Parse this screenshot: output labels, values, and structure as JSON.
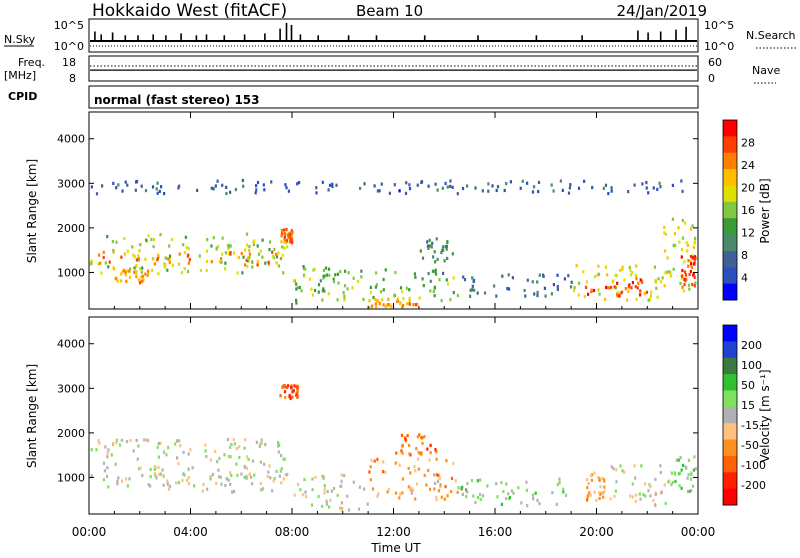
{
  "header": {
    "title": "Hokkaido West (fitACF)",
    "beam": "Beam 10",
    "date": "24/Jan/2019"
  },
  "noise_panel": {
    "left_label": "N.Sky",
    "right_label": "N.Search",
    "left_ticks": [
      "10^5",
      "10^0"
    ],
    "right_ticks": [
      "10^5",
      "10^0"
    ],
    "n_sky_bars": [
      {
        "x": 0.2,
        "v": 0.5
      },
      {
        "x": 0.45,
        "v": 0.35
      },
      {
        "x": 0.9,
        "v": 0.45
      },
      {
        "x": 1.4,
        "v": 0.3
      },
      {
        "x": 1.9,
        "v": 0.3
      },
      {
        "x": 2.5,
        "v": 0.35
      },
      {
        "x": 3.0,
        "v": 0.3
      },
      {
        "x": 3.6,
        "v": 0.4
      },
      {
        "x": 4.2,
        "v": 0.3
      },
      {
        "x": 4.6,
        "v": 0.35
      },
      {
        "x": 5.3,
        "v": 0.3
      },
      {
        "x": 6.1,
        "v": 0.35
      },
      {
        "x": 6.9,
        "v": 0.4
      },
      {
        "x": 7.5,
        "v": 0.65
      },
      {
        "x": 7.75,
        "v": 0.95
      },
      {
        "x": 7.95,
        "v": 0.85
      },
      {
        "x": 8.3,
        "v": 0.35
      },
      {
        "x": 9.0,
        "v": 0.3
      },
      {
        "x": 10.2,
        "v": 0.3
      },
      {
        "x": 11.3,
        "v": 0.3
      },
      {
        "x": 13.2,
        "v": 0.3
      },
      {
        "x": 15.3,
        "v": 0.3
      },
      {
        "x": 17.6,
        "v": 0.3
      },
      {
        "x": 19.4,
        "v": 0.3
      },
      {
        "x": 21.6,
        "v": 0.55
      },
      {
        "x": 22.0,
        "v": 0.45
      },
      {
        "x": 22.5,
        "v": 0.5
      },
      {
        "x": 23.1,
        "v": 0.6
      },
      {
        "x": 23.5,
        "v": 0.75
      }
    ]
  },
  "freq_panel": {
    "label_top": "Freq.",
    "label_unit": "[MHz]",
    "left_ticks": [
      "18",
      "8"
    ],
    "right_ticks": [
      "60",
      "0"
    ],
    "right_label": "Nave",
    "freq_mhz": 12.3,
    "nave": 22
  },
  "cpid": {
    "label": "CPID",
    "text": "normal (fast stereo) 153"
  },
  "x_axis": {
    "ticks": [
      "00:00",
      "04:00",
      "08:00",
      "12:00",
      "16:00",
      "20:00",
      "00:00"
    ],
    "tick_hours": [
      0,
      4,
      8,
      12,
      16,
      20,
      24
    ],
    "label": "Time UT"
  },
  "power_panel": {
    "ylabel": "Slant Range [km]",
    "yticks": [
      1000,
      2000,
      3000,
      4000
    ],
    "ylim": [
      180,
      4600
    ],
    "colorbar_label": "Power [dB]",
    "colorbar_ticks": [
      "28",
      "24",
      "20",
      "16",
      "12",
      "8",
      "4"
    ],
    "colors": [
      "#ff0000",
      "#ff3f00",
      "#ff7f00",
      "#ffbf00",
      "#e0e000",
      "#80c840",
      "#3a9a3a",
      "#4a8a6a",
      "#406098",
      "#2c4fc0",
      "#0000ff"
    ]
  },
  "velocity_panel": {
    "ylabel": "Slant Range [km]",
    "yticks": [
      1000,
      2000,
      3000,
      4000
    ],
    "ylim": [
      180,
      4600
    ],
    "colorbar_label": "Velocity [m s⁻¹]",
    "colorbar_ticks": [
      "200",
      "100",
      "50",
      "15",
      "-15",
      "-50",
      "-100",
      "-200"
    ],
    "colors": [
      "#0000ff",
      "#2040d0",
      "#3a7a40",
      "#30c030",
      "#80e060",
      "#b0b0b0",
      "#ffc080",
      "#ff9020",
      "#ff6000",
      "#ff2000",
      "#ff0000"
    ]
  },
  "chart_data": [
    {
      "type": "heatmap",
      "title": "Hokkaido West (fitACF) Beam 10 24/Jan/2019",
      "quantity": "Power",
      "xlabel": "Time UT",
      "ylabel": "Slant Range [km]",
      "x_range_hours": [
        0,
        24
      ],
      "ylim": [
        180,
        4600
      ],
      "colorbar_range": [
        0,
        30
      ],
      "colorbar_unit": "dB",
      "regions": [
        {
          "t0": 0.0,
          "t1": 7.8,
          "r0": 1000,
          "r1": 1900,
          "value": 16
        },
        {
          "t0": 0.3,
          "t1": 7.8,
          "r0": 1200,
          "r1": 1500,
          "value": 24
        },
        {
          "t0": 1.0,
          "t1": 2.3,
          "r0": 800,
          "r1": 1100,
          "value": 22
        },
        {
          "t0": 7.5,
          "t1": 8.0,
          "r0": 1700,
          "r1": 2000,
          "value": 24
        },
        {
          "t0": 0.0,
          "t1": 24.0,
          "r0": 2800,
          "r1": 3100,
          "value": 6
        },
        {
          "t0": 8.0,
          "t1": 9.5,
          "r0": 300,
          "r1": 1200,
          "value": 14
        },
        {
          "t0": 9.0,
          "t1": 14.5,
          "r0": 400,
          "r1": 1100,
          "value": 14
        },
        {
          "t0": 13.0,
          "t1": 14.3,
          "r0": 1000,
          "r1": 1800,
          "value": 10
        },
        {
          "t0": 11.0,
          "t1": 13.0,
          "r0": 250,
          "r1": 450,
          "value": 22
        },
        {
          "t0": 14.5,
          "t1": 19.0,
          "r0": 500,
          "r1": 1000,
          "value": 8
        },
        {
          "t0": 19.0,
          "t1": 22.5,
          "r0": 400,
          "r1": 1200,
          "value": 18
        },
        {
          "t0": 19.5,
          "t1": 22.0,
          "r0": 500,
          "r1": 900,
          "value": 26
        },
        {
          "t0": 22.5,
          "t1": 24.0,
          "r0": 600,
          "r1": 2300,
          "value": 18
        },
        {
          "t0": 23.3,
          "t1": 24.0,
          "r0": 700,
          "r1": 1400,
          "value": 26
        }
      ]
    },
    {
      "type": "heatmap",
      "title": "Hokkaido West (fitACF) Beam 10 24/Jan/2019",
      "quantity": "Velocity",
      "xlabel": "Time UT",
      "ylabel": "Slant Range [km]",
      "x_range_hours": [
        0,
        24
      ],
      "ylim": [
        180,
        4600
      ],
      "colorbar_range": [
        -250,
        250
      ],
      "colorbar_unit": "m s-1",
      "regions": [
        {
          "t0": 0.0,
          "t1": 7.8,
          "r0": 1000,
          "r1": 1900,
          "value": 0
        },
        {
          "t0": 0.3,
          "t1": 7.8,
          "r0": 700,
          "r1": 1100,
          "value": 0
        },
        {
          "t0": 7.5,
          "t1": 8.2,
          "r0": 2800,
          "r1": 3100,
          "value": -150
        },
        {
          "t0": 8.0,
          "t1": 11.0,
          "r0": 300,
          "r1": 1100,
          "value": 0
        },
        {
          "t0": 11.0,
          "t1": 14.5,
          "r0": 500,
          "r1": 1500,
          "value": -70
        },
        {
          "t0": 12.0,
          "t1": 13.8,
          "r0": 1500,
          "r1": 2000,
          "value": -120
        },
        {
          "t0": 14.5,
          "t1": 19.0,
          "r0": 400,
          "r1": 1000,
          "value": 30
        },
        {
          "t0": 19.5,
          "t1": 20.3,
          "r0": 500,
          "r1": 1200,
          "value": -80
        },
        {
          "t0": 20.3,
          "t1": 23.0,
          "r0": 400,
          "r1": 1300,
          "value": 0
        },
        {
          "t0": 23.0,
          "t1": 24.0,
          "r0": 700,
          "r1": 1500,
          "value": 40
        }
      ]
    }
  ]
}
